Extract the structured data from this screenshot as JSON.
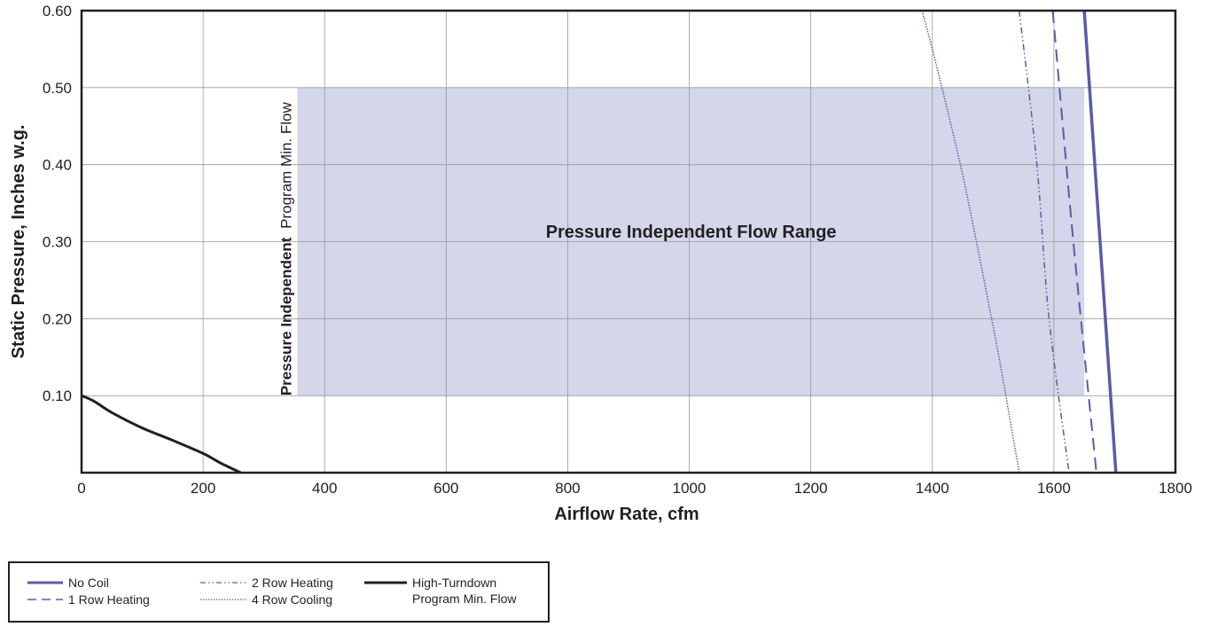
{
  "chart_data": {
    "type": "line",
    "xlabel": "Airflow Rate, cfm",
    "ylabel": "Static Pressure, Inches w.g.",
    "xlim": [
      0,
      1800
    ],
    "ylim": [
      0,
      0.6
    ],
    "x_ticks": [
      "0",
      "200",
      "400",
      "600",
      "800",
      "1000",
      "1200",
      "1400",
      "1600",
      "1800"
    ],
    "y_ticks": [
      "0.10",
      "0.20",
      "0.30",
      "0.40",
      "0.50",
      "0.60"
    ],
    "grid": true,
    "shaded_region": {
      "label": "Pressure Independent Flow Range",
      "x_range": [
        355,
        1650
      ],
      "y_range": [
        0.1,
        0.5
      ],
      "color": "#d4d6e9"
    },
    "vertical_annotation": {
      "bold": "Pressure Independent",
      "normal": "Program Min. Flow"
    },
    "series": [
      {
        "name": "No Coil",
        "color": "#5a5ca8",
        "dash": "solid",
        "width": 3.5,
        "points": [
          [
            1650,
            0.6
          ],
          [
            1676,
            0.3
          ],
          [
            1702,
            0.0
          ]
        ]
      },
      {
        "name": "1 Row Heating",
        "color": "#5a5ca8",
        "dash": "long-dash",
        "width": 2,
        "points": [
          [
            1598,
            0.6
          ],
          [
            1632,
            0.3
          ],
          [
            1670,
            0.0
          ]
        ]
      },
      {
        "name": "2 Row Heating",
        "color": "#5a5ca8",
        "dash": "dash-dot-dot",
        "width": 1.5,
        "points": [
          [
            1543,
            0.6
          ],
          [
            1572,
            0.4
          ],
          [
            1592,
            0.2
          ],
          [
            1625,
            0.0
          ]
        ]
      },
      {
        "name": "4 Row Cooling",
        "color": "#5a5ca8",
        "dash": "dotted",
        "width": 1.5,
        "points": [
          [
            1383,
            0.6
          ],
          [
            1400,
            0.55
          ],
          [
            1422,
            0.48
          ],
          [
            1449,
            0.39
          ],
          [
            1470,
            0.31
          ],
          [
            1490,
            0.23
          ],
          [
            1512,
            0.14
          ],
          [
            1543,
            0.0
          ]
        ]
      },
      {
        "name": "High-Turndown\nProgram Min. Flow",
        "color": "#231f20",
        "dash": "solid",
        "width": 3,
        "points": [
          [
            0,
            0.1
          ],
          [
            20,
            0.093
          ],
          [
            50,
            0.078
          ],
          [
            100,
            0.058
          ],
          [
            150,
            0.042
          ],
          [
            200,
            0.025
          ],
          [
            230,
            0.012
          ],
          [
            262,
            0.0
          ]
        ]
      }
    ]
  },
  "legend": {
    "no_coil": "No Coil",
    "one_row": "1 Row Heating",
    "two_row": "2 Row Heating",
    "four_row": "4 Row Cooling",
    "high_turndown": "High-Turndown\nProgram Min. Flow"
  }
}
